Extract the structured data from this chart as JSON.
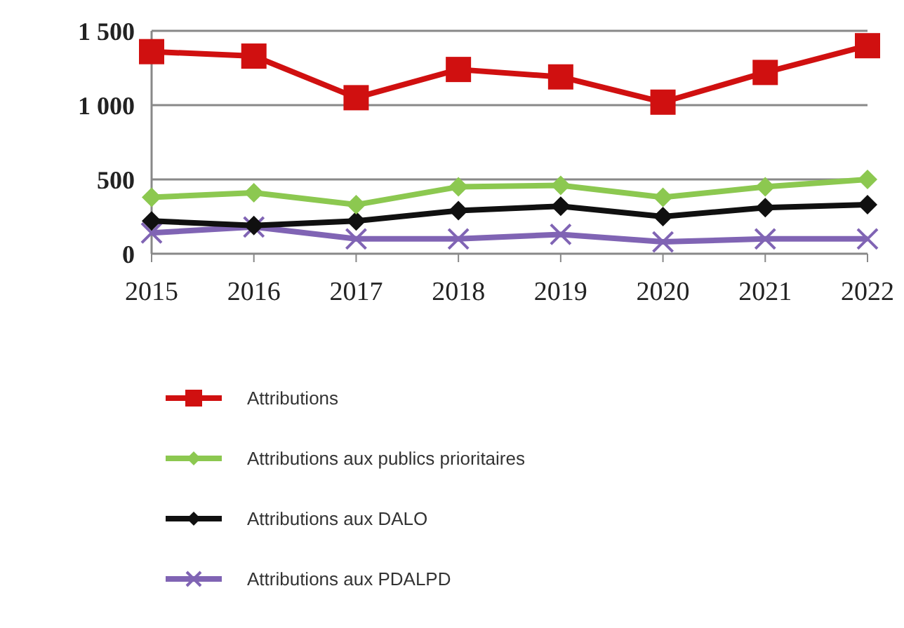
{
  "chart_data": {
    "type": "line",
    "categories": [
      "2015",
      "2016",
      "2017",
      "2018",
      "2019",
      "2020",
      "2021",
      "2022"
    ],
    "series": [
      {
        "name": "Attributions",
        "color": "#d01010",
        "marker": "square",
        "values": [
          1360,
          1330,
          1050,
          1240,
          1190,
          1020,
          1220,
          1400
        ]
      },
      {
        "name": "Attributions aux publics prioritaires",
        "color": "#8cc850",
        "marker": "diamond",
        "values": [
          380,
          410,
          330,
          450,
          460,
          380,
          450,
          500
        ]
      },
      {
        "name": "Attributions aux DALO",
        "color": "#101010",
        "marker": "diamond",
        "values": [
          220,
          190,
          220,
          290,
          320,
          250,
          310,
          330
        ]
      },
      {
        "name": "Attributions aux PDALPD",
        "color": "#8064b4",
        "marker": "cross",
        "values": [
          140,
          180,
          100,
          100,
          130,
          80,
          100,
          100
        ]
      }
    ],
    "ylim": [
      0,
      1500
    ],
    "yticks": [
      0,
      500,
      {
        "value": 1000,
        "label": "1 000"
      },
      {
        "value": 1500,
        "label": "1 500"
      }
    ],
    "grid": "y",
    "legend": "bottom",
    "line_style": "solid"
  }
}
